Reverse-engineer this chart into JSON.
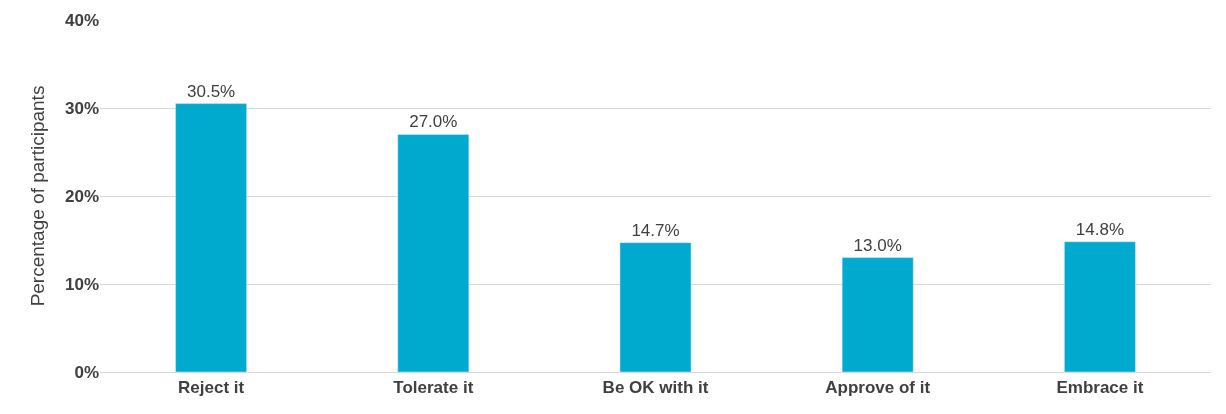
{
  "chart_data": {
    "type": "bar",
    "ylabel": "Percentage of participants",
    "categories": [
      "Reject it",
      "Tolerate it",
      "Be OK with it",
      "Approve of it",
      "Embrace it"
    ],
    "values": [
      30.5,
      27.0,
      14.7,
      13.0,
      14.8
    ],
    "value_labels": [
      "30.5%",
      "27.0%",
      "14.7%",
      "13.0%",
      "14.8%"
    ],
    "color": "#00a9ce",
    "ylim": [
      0,
      40
    ],
    "yticks": [
      {
        "value": 0,
        "label": "0%"
      },
      {
        "value": 10,
        "label": "10%"
      },
      {
        "value": 20,
        "label": "20%"
      },
      {
        "value": 30,
        "label": "30%"
      },
      {
        "value": 40,
        "label": "40%"
      }
    ],
    "grid": "y",
    "legend": false
  }
}
